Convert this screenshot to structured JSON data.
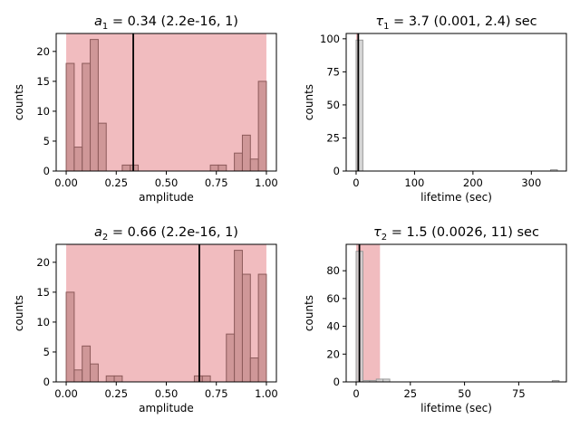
{
  "chart_data": [
    {
      "type": "histogram",
      "title_var": "a",
      "title_sub": "1",
      "title_rest": " = 0.34 (2.2e-16, 1)",
      "xlabel": "amplitude",
      "ylabel": "counts",
      "xlim": [
        -0.05,
        1.05
      ],
      "ylim": [
        0,
        23
      ],
      "xticks": [
        0.0,
        0.25,
        0.5,
        0.75,
        1.0
      ],
      "xtick_labels": [
        "0.00",
        "0.25",
        "0.50",
        "0.75",
        "1.00"
      ],
      "yticks": [
        0,
        5,
        10,
        15,
        20
      ],
      "ytick_labels": [
        "0",
        "5",
        "10",
        "15",
        "20"
      ],
      "interval": [
        0.0,
        1.0
      ],
      "estimate": 0.335,
      "bin_width": 0.04,
      "bins": [
        {
          "x0": 0.0,
          "count": 18
        },
        {
          "x0": 0.04,
          "count": 4
        },
        {
          "x0": 0.08,
          "count": 18
        },
        {
          "x0": 0.12,
          "count": 22
        },
        {
          "x0": 0.16,
          "count": 8
        },
        {
          "x0": 0.28,
          "count": 1
        },
        {
          "x0": 0.32,
          "count": 1
        },
        {
          "x0": 0.72,
          "count": 1
        },
        {
          "x0": 0.76,
          "count": 1
        },
        {
          "x0": 0.84,
          "count": 3
        },
        {
          "x0": 0.88,
          "count": 6
        },
        {
          "x0": 0.92,
          "count": 2
        },
        {
          "x0": 0.96,
          "count": 15
        }
      ],
      "colors": {
        "interval": "#f1bcbf",
        "bar": "#c99090",
        "edge": "#8c5a5a",
        "estimate": "#000000"
      }
    },
    {
      "type": "histogram",
      "title_var": "τ",
      "title_sub": "1",
      "title_rest": " = 3.7 (0.001, 2.4) sec",
      "xlabel": "lifetime (sec)",
      "ylabel": "counts",
      "xlim": [
        -17,
        360
      ],
      "ylim": [
        0,
        104
      ],
      "xticks": [
        0,
        100,
        200,
        300
      ],
      "xtick_labels": [
        "0",
        "100",
        "200",
        "300"
      ],
      "yticks": [
        0,
        25,
        50,
        75,
        100
      ],
      "ytick_labels": [
        "0",
        "25",
        "50",
        "75",
        "100"
      ],
      "interval": [
        0.001,
        2.4
      ],
      "estimate": 3.7,
      "bin_width": 11.5,
      "bins": [
        {
          "x0": 0,
          "count": 99
        },
        {
          "x0": 333,
          "count": 1
        }
      ],
      "colors": {
        "interval": "#f1bcbf",
        "bar": "#d0d0d0",
        "edge": "#9a9a9a",
        "estimate": "#000000"
      }
    },
    {
      "type": "histogram",
      "title_var": "a",
      "title_sub": "2",
      "title_rest": " = 0.66 (2.2e-16, 1)",
      "xlabel": "amplitude",
      "ylabel": "counts",
      "xlim": [
        -0.05,
        1.05
      ],
      "ylim": [
        0,
        23
      ],
      "xticks": [
        0.0,
        0.25,
        0.5,
        0.75,
        1.0
      ],
      "xtick_labels": [
        "0.00",
        "0.25",
        "0.50",
        "0.75",
        "1.00"
      ],
      "yticks": [
        0,
        5,
        10,
        15,
        20
      ],
      "ytick_labels": [
        "0",
        "5",
        "10",
        "15",
        "20"
      ],
      "interval": [
        0.0,
        1.0
      ],
      "estimate": 0.665,
      "bin_width": 0.04,
      "bins": [
        {
          "x0": 0.0,
          "count": 15
        },
        {
          "x0": 0.04,
          "count": 2
        },
        {
          "x0": 0.08,
          "count": 6
        },
        {
          "x0": 0.12,
          "count": 3
        },
        {
          "x0": 0.2,
          "count": 1
        },
        {
          "x0": 0.24,
          "count": 1
        },
        {
          "x0": 0.64,
          "count": 1
        },
        {
          "x0": 0.68,
          "count": 1
        },
        {
          "x0": 0.8,
          "count": 8
        },
        {
          "x0": 0.84,
          "count": 22
        },
        {
          "x0": 0.88,
          "count": 18
        },
        {
          "x0": 0.92,
          "count": 4
        },
        {
          "x0": 0.96,
          "count": 18
        }
      ],
      "colors": {
        "interval": "#f1bcbf",
        "bar": "#c99090",
        "edge": "#8c5a5a",
        "estimate": "#000000"
      }
    },
    {
      "type": "histogram",
      "title_var": "τ",
      "title_sub": "2",
      "title_rest": " = 1.5 (0.0026, 11) sec",
      "xlabel": "lifetime (sec)",
      "ylabel": "counts",
      "xlim": [
        -4.6,
        97
      ],
      "ylim": [
        0,
        99
      ],
      "xticks": [
        0,
        25,
        50,
        75
      ],
      "xtick_labels": [
        "0",
        "25",
        "50",
        "75"
      ],
      "yticks": [
        0,
        20,
        40,
        60,
        80
      ],
      "ytick_labels": [
        "0",
        "20",
        "40",
        "60",
        "80"
      ],
      "interval": [
        0.0026,
        11
      ],
      "estimate": 1.5,
      "bin_width": 3.1,
      "bins": [
        {
          "x0": 0,
          "count": 94
        },
        {
          "x0": 3.1,
          "count": 1
        },
        {
          "x0": 6.2,
          "count": 1
        },
        {
          "x0": 9.3,
          "count": 2
        },
        {
          "x0": 12.4,
          "count": 2
        },
        {
          "x0": 90.5,
          "count": 1
        }
      ],
      "colors": {
        "interval": "#f1bcbf",
        "bar": "#d0d0d0",
        "edge": "#9a9a9a",
        "estimate": "#000000"
      }
    }
  ]
}
